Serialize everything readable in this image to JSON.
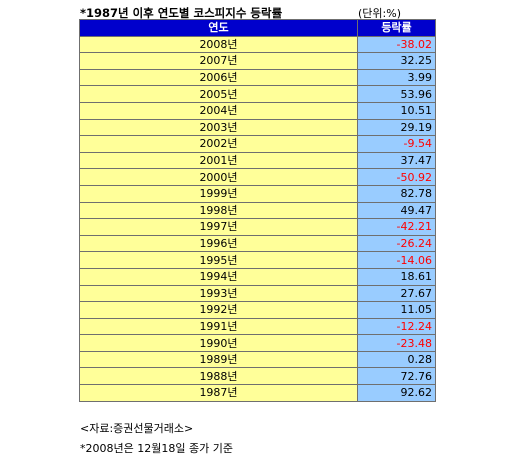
{
  "title": "*1987년 이후 연도별 코스피지수 등락률",
  "unit": "(단위:%)",
  "table": {
    "headers": [
      "연도",
      "등락률"
    ],
    "rows": [
      {
        "year": "2008년",
        "rate": "-38.02",
        "negative": true
      },
      {
        "year": "2007년",
        "rate": "32.25",
        "negative": false
      },
      {
        "year": "2006년",
        "rate": "3.99",
        "negative": false
      },
      {
        "year": "2005년",
        "rate": "53.96",
        "negative": false
      },
      {
        "year": "2004년",
        "rate": "10.51",
        "negative": false
      },
      {
        "year": "2003년",
        "rate": "29.19",
        "negative": false
      },
      {
        "year": "2002년",
        "rate": "-9.54",
        "negative": true
      },
      {
        "year": "2001년",
        "rate": "37.47",
        "negative": false
      },
      {
        "year": "2000년",
        "rate": "-50.92",
        "negative": true
      },
      {
        "year": "1999년",
        "rate": "82.78",
        "negative": false
      },
      {
        "year": "1998년",
        "rate": "49.47",
        "negative": false
      },
      {
        "year": "1997년",
        "rate": "-42.21",
        "negative": true
      },
      {
        "year": "1996년",
        "rate": "-26.24",
        "negative": true
      },
      {
        "year": "1995년",
        "rate": "-14.06",
        "negative": true
      },
      {
        "year": "1994년",
        "rate": "18.61",
        "negative": false
      },
      {
        "year": "1993년",
        "rate": "27.67",
        "negative": false
      },
      {
        "year": "1992년",
        "rate": "11.05",
        "negative": false
      },
      {
        "year": "1991년",
        "rate": "-12.24",
        "negative": true
      },
      {
        "year": "1990년",
        "rate": "-23.48",
        "negative": true
      },
      {
        "year": "1989년",
        "rate": "0.28",
        "negative": false
      },
      {
        "year": "1988년",
        "rate": "72.76",
        "negative": false
      },
      {
        "year": "1987년",
        "rate": "92.62",
        "negative": false
      }
    ]
  },
  "colors": {
    "header_bg": "#0000cc",
    "year_bg": "#ffff99",
    "rate_bg": "#99ccff",
    "negative": "#ff0000"
  },
  "notes": {
    "source": "<자료:증권선물거래소>",
    "footnote": "*2008년은 12월18일 종가 기준"
  }
}
